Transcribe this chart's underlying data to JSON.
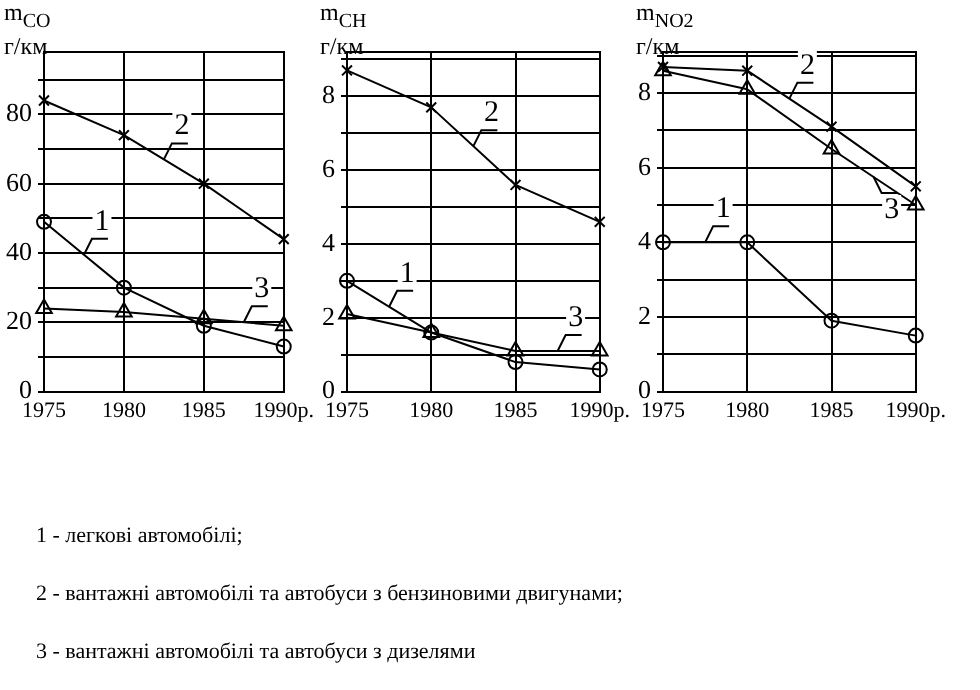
{
  "chart_data": [
    {
      "type": "line",
      "ylabel": "m$_{CO}$\nг/км",
      "categories": [
        "1975",
        "1980",
        "1985",
        "1990р."
      ],
      "ylim": [
        0,
        98
      ],
      "yticks": [
        0,
        {
          "value": 10,
          "label": null
        },
        20,
        {
          "value": 30,
          "label": null
        },
        40,
        {
          "value": 50,
          "label": null
        },
        60,
        {
          "value": 70,
          "label": null
        },
        80,
        {
          "value": 90,
          "label": null
        }
      ],
      "grid": true,
      "line_style": "solid",
      "series": [
        {
          "name": "1",
          "color": "#000000",
          "marker": "circle",
          "values": [
            49,
            30,
            19,
            13
          ]
        },
        {
          "name": "2",
          "color": "#000000",
          "marker": "cross",
          "values": [
            84,
            74,
            60,
            44
          ]
        },
        {
          "name": "3",
          "color": "#000000",
          "marker": "triangle",
          "values": [
            24,
            23,
            21,
            19
          ]
        }
      ]
    },
    {
      "type": "line",
      "ylabel": "m$_{CH}$\nг/км",
      "categories": [
        "1975",
        "1980",
        "1985",
        "1990р."
      ],
      "ylim": [
        0,
        9.2
      ],
      "yticks": [
        0,
        {
          "value": 1,
          "label": null
        },
        2,
        {
          "value": 3,
          "label": null
        },
        4,
        {
          "value": 5,
          "label": null
        },
        6,
        {
          "value": 7,
          "label": null
        },
        8,
        {
          "value": 9,
          "label": null
        }
      ],
      "grid": true,
      "line_style": "solid",
      "series": [
        {
          "name": "1",
          "color": "#000000",
          "marker": "circle",
          "values": [
            3.0,
            1.6,
            0.8,
            0.6
          ]
        },
        {
          "name": "2",
          "color": "#000000",
          "marker": "cross",
          "values": [
            8.7,
            7.7,
            5.6,
            4.6
          ]
        },
        {
          "name": "3",
          "color": "#000000",
          "marker": "triangle",
          "values": [
            2.1,
            1.6,
            1.1,
            1.1
          ]
        }
      ]
    },
    {
      "type": "line",
      "ylabel": "m$_{NO2}$\nг/км",
      "categories": [
        "1975",
        "1980",
        "1985",
        "1990р."
      ],
      "ylim": [
        0,
        9.1
      ],
      "yticks": [
        0,
        {
          "value": 1,
          "label": null
        },
        2,
        {
          "value": 3,
          "label": null
        },
        4,
        {
          "value": 5,
          "label": null
        },
        6,
        {
          "value": 7,
          "label": null
        },
        8,
        {
          "value": 9,
          "label": null
        }
      ],
      "grid": true,
      "line_style": "solid",
      "series": [
        {
          "name": "1",
          "color": "#000000",
          "marker": "circle",
          "values": [
            4.0,
            4.0,
            1.9,
            1.5
          ]
        },
        {
          "name": "2",
          "color": "#000000",
          "marker": "cross",
          "values": [
            8.7,
            8.6,
            7.1,
            5.5
          ]
        },
        {
          "name": "3",
          "color": "#000000",
          "marker": "triangle",
          "values": [
            8.6,
            8.1,
            6.5,
            5.0
          ]
        }
      ]
    },
    {
      "type": "other",
      "annotations": [
        "1 - легкові автомобілі;",
        "2 - вантажні автомобілі та автобуси з бензиновими двигунами;",
        "3 - вантажні автомобілі та автобуси з дизелями"
      ]
    }
  ]
}
